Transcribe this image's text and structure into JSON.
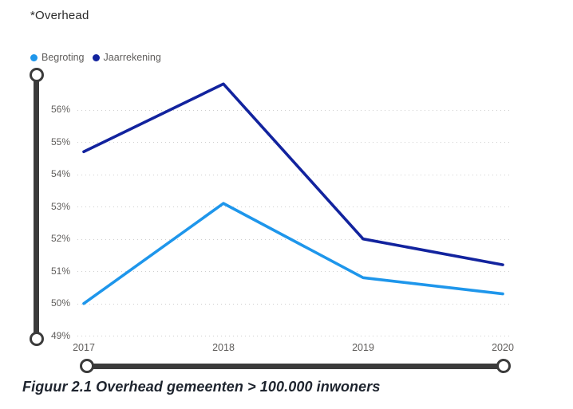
{
  "title": "*Overhead",
  "legend": {
    "items": [
      {
        "label": "Begroting",
        "color": "#1e96eb"
      },
      {
        "label": "Jaarrekening",
        "color": "#12239e"
      }
    ]
  },
  "chart_data": {
    "type": "line",
    "title": "*Overhead",
    "x_labels": [
      "2017",
      "2018",
      "2019",
      "2020"
    ],
    "series": [
      {
        "name": "Begroting",
        "color": "#1e96eb",
        "values": [
          50.0,
          53.1,
          50.8,
          50.3
        ]
      },
      {
        "name": "Jaarrekening",
        "color": "#12239e",
        "values": [
          54.7,
          56.8,
          52.0,
          51.2
        ]
      }
    ],
    "y_ticks": [
      {
        "value": 49,
        "label": "49%"
      },
      {
        "value": 50,
        "label": "50%"
      },
      {
        "value": 51,
        "label": "51%"
      },
      {
        "value": 52,
        "label": "52%"
      },
      {
        "value": 53,
        "label": "53%"
      },
      {
        "value": 54,
        "label": "54%"
      },
      {
        "value": 55,
        "label": "55%"
      },
      {
        "value": 56,
        "label": "56%"
      }
    ],
    "ylim": [
      48.8,
      57.2
    ],
    "grid": "horizontal-dotted",
    "legend_position": "top-left"
  },
  "caption": "Figuur 2.1 Overhead gemeenten > 100.000 inwoners",
  "colors": {
    "series_light": "#1e96eb",
    "series_dark": "#12239e",
    "axis_text": "#605e5c",
    "title_text": "#2b2b2b",
    "gridline": "#cfcfcf",
    "slider": "#3b3b3b",
    "caption_text": "#1e242e"
  }
}
